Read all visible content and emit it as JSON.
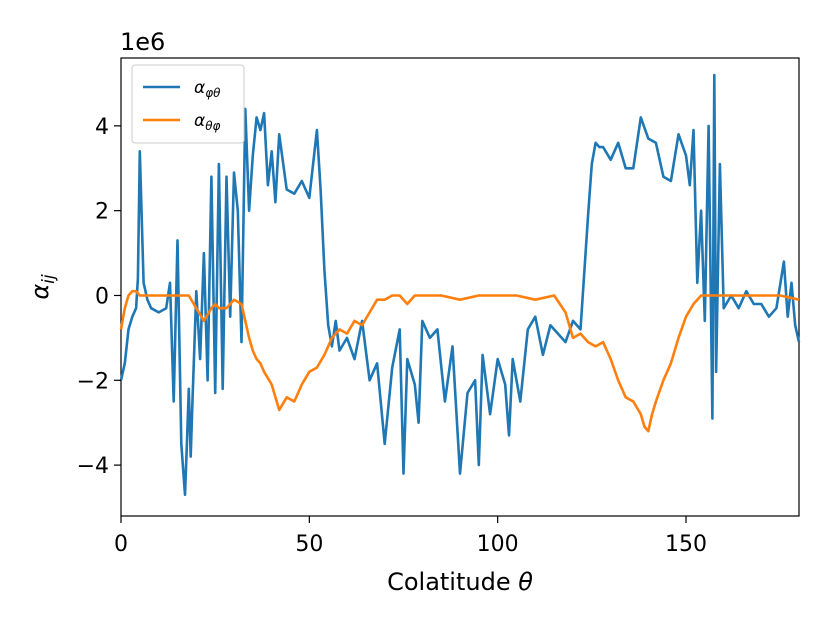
{
  "chart_data": {
    "type": "line",
    "offset_text": "1e6",
    "xlabel": "Colatitude θ",
    "ylabel": "α_ij",
    "xlim": [
      0,
      180
    ],
    "ylim": [
      -5.2,
      5.6
    ],
    "xticks": [
      0,
      50,
      100,
      150
    ],
    "xtick_labels": [
      "0",
      "50",
      "100",
      "150"
    ],
    "yticks": [
      -4,
      -2,
      0,
      2,
      4
    ],
    "ytick_labels": [
      "−4",
      "−2",
      "0",
      "2",
      "4"
    ],
    "grid": false,
    "legend_position": "top-left",
    "series": [
      {
        "name": "α_φθ",
        "color": "#1f77b4",
        "x": [
          0,
          1,
          2,
          3,
          4,
          4.5,
          5,
          6,
          7,
          8,
          10,
          12,
          13,
          14,
          15,
          16,
          17,
          17.5,
          18,
          18.5,
          19,
          20,
          21,
          22,
          23,
          24,
          25,
          26,
          27,
          28,
          29,
          30,
          31,
          32,
          33,
          34,
          35,
          36,
          37,
          38,
          39,
          40,
          41,
          42,
          44,
          46,
          48,
          50,
          52,
          53,
          54,
          55,
          56,
          57,
          58,
          60,
          62,
          64,
          66,
          68,
          70,
          72,
          74,
          75,
          76,
          78,
          79,
          80,
          82,
          84,
          86,
          88,
          90,
          92,
          94,
          95,
          96,
          98,
          100,
          102,
          103,
          104,
          106,
          108,
          110,
          112,
          114,
          116,
          118,
          120,
          122,
          124,
          125,
          126,
          127,
          128,
          130,
          132,
          134,
          136,
          138,
          140,
          142,
          144,
          146,
          148,
          150,
          151,
          152,
          153,
          154,
          155,
          156,
          157,
          157.5,
          158,
          159,
          160,
          162,
          164,
          166,
          168,
          170,
          172,
          174,
          176,
          177,
          178,
          179,
          180
        ],
        "y": [
          -2.0,
          -1.6,
          -0.8,
          -0.5,
          -0.3,
          0.4,
          3.4,
          0.3,
          -0.1,
          -0.3,
          -0.4,
          -0.3,
          0.3,
          -2.5,
          1.3,
          -3.5,
          -4.7,
          -3.5,
          -2.2,
          -3.8,
          -2.4,
          0.1,
          -1.5,
          1.0,
          -2.0,
          2.8,
          -2.3,
          3.1,
          -2.2,
          2.8,
          -0.5,
          2.9,
          2.0,
          -1.1,
          4.4,
          2.0,
          3.3,
          4.2,
          3.9,
          4.3,
          2.6,
          3.4,
          2.2,
          3.8,
          2.5,
          2.4,
          2.7,
          2.3,
          3.9,
          2.5,
          0.6,
          -0.7,
          -1.2,
          -0.6,
          -1.3,
          -1.0,
          -1.5,
          -0.6,
          -2.0,
          -1.6,
          -3.5,
          -1.7,
          -0.8,
          -4.2,
          -1.5,
          -2.1,
          -3.0,
          -0.6,
          -1.0,
          -0.8,
          -2.5,
          -1.2,
          -4.2,
          -2.3,
          -2.0,
          -4.0,
          -1.4,
          -2.8,
          -1.5,
          -2.1,
          -3.3,
          -1.5,
          -2.5,
          -0.8,
          -0.5,
          -1.4,
          -0.7,
          -0.9,
          -1.1,
          -0.6,
          -0.8,
          1.9,
          3.1,
          3.6,
          3.5,
          3.5,
          3.2,
          3.6,
          3.0,
          3.0,
          4.2,
          3.7,
          3.6,
          2.8,
          2.7,
          3.8,
          3.3,
          2.6,
          3.9,
          0.3,
          2.0,
          -0.6,
          4.0,
          -2.9,
          5.2,
          -1.8,
          3.1,
          -0.3,
          0.0,
          -0.3,
          0.1,
          -0.2,
          -0.2,
          -0.5,
          -0.3,
          0.8,
          -0.5,
          0.3,
          -0.7,
          -1.1
        ]
      },
      {
        "name": "α_θφ",
        "color": "#ff7f0e",
        "x": [
          0,
          1,
          2,
          3,
          4,
          5,
          6,
          8,
          10,
          12,
          14,
          16,
          17,
          18,
          20,
          22,
          24,
          25,
          26,
          28,
          30,
          32,
          33,
          34,
          35,
          36,
          37,
          38,
          40,
          42,
          44,
          46,
          48,
          50,
          52,
          54,
          56,
          58,
          60,
          62,
          64,
          66,
          68,
          70,
          72,
          74,
          76,
          78,
          80,
          85,
          90,
          95,
          100,
          105,
          110,
          115,
          118,
          120,
          122,
          124,
          126,
          128,
          130,
          132,
          134,
          136,
          138,
          139,
          140,
          141,
          142,
          144,
          146,
          148,
          150,
          152,
          154,
          156,
          158,
          160,
          165,
          170,
          175,
          180
        ],
        "y": [
          -0.8,
          -0.3,
          0.0,
          0.1,
          0.1,
          0.0,
          0.0,
          0.0,
          0.0,
          0.0,
          0.0,
          0.0,
          0.0,
          0.0,
          -0.3,
          -0.6,
          -0.3,
          -0.2,
          -0.3,
          -0.3,
          -0.1,
          -0.2,
          -0.6,
          -1.0,
          -1.3,
          -1.5,
          -1.6,
          -1.8,
          -2.1,
          -2.7,
          -2.4,
          -2.5,
          -2.1,
          -1.8,
          -1.7,
          -1.4,
          -1.0,
          -0.8,
          -0.9,
          -0.6,
          -0.7,
          -0.4,
          -0.1,
          -0.1,
          0.0,
          0.0,
          -0.2,
          0.0,
          0.0,
          0.0,
          -0.1,
          0.0,
          0.0,
          0.0,
          -0.1,
          0.0,
          -0.4,
          -1.0,
          -0.9,
          -1.1,
          -1.2,
          -1.1,
          -1.5,
          -2.0,
          -2.4,
          -2.5,
          -2.8,
          -3.1,
          -3.2,
          -2.8,
          -2.5,
          -2.0,
          -1.6,
          -1.0,
          -0.5,
          -0.2,
          0.0,
          0.0,
          0.0,
          0.0,
          0.0,
          0.0,
          0.0,
          -0.1
        ]
      }
    ]
  },
  "legend": {
    "entries": [
      {
        "base": "α",
        "sub": "φθ",
        "color": "#1f77b4"
      },
      {
        "base": "α",
        "sub": "θφ",
        "color": "#ff7f0e"
      }
    ]
  },
  "axis_text": {
    "xlabel_main": "Colatitude ",
    "xlabel_symbol": "θ",
    "ylabel_base": "α",
    "ylabel_sub": "ij"
  }
}
